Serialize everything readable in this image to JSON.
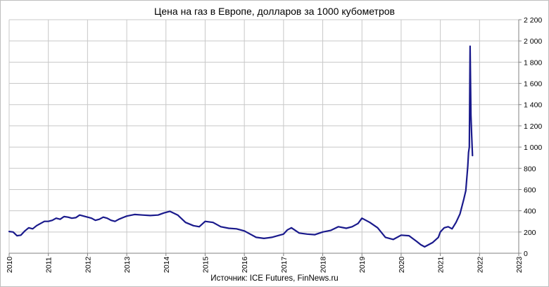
{
  "chart_data": {
    "type": "line",
    "title": "Цена на газ в Европе, долларов за 1000 кубометров",
    "source": "Источник: ICE Futures, FinNews.ru",
    "xlabel": "",
    "ylabel": "",
    "x_ticks": [
      "2010",
      "2011",
      "2012",
      "2013",
      "2014",
      "2015",
      "2016",
      "2017",
      "2018",
      "2019",
      "2020",
      "2021",
      "2022",
      "2023"
    ],
    "xlim": [
      2010,
      2023
    ],
    "y_ticks": [
      "0",
      "200",
      "400",
      "600",
      "800",
      "1 000",
      "1 200",
      "1 400",
      "1 600",
      "1 800",
      "2 000",
      "2 200"
    ],
    "ylim": [
      0,
      2200
    ],
    "y_axis_side": "right",
    "grid": true,
    "line_color": "#1a1a8c",
    "series": [
      {
        "x": [
          2010.0,
          2010.1,
          2010.2,
          2010.3,
          2010.4,
          2010.5,
          2010.6,
          2010.7,
          2010.8,
          2010.9,
          2011.0,
          2011.1,
          2011.2,
          2011.3,
          2011.4,
          2011.5,
          2011.6,
          2011.7,
          2011.8,
          2011.9,
          2012.0,
          2012.1,
          2012.2,
          2012.3,
          2012.4,
          2012.5,
          2012.6,
          2012.7,
          2012.8,
          2012.9,
          2013.0,
          2013.2,
          2013.4,
          2013.6,
          2013.8,
          2013.95,
          2014.1,
          2014.3,
          2014.5,
          2014.7,
          2014.85,
          2015.0,
          2015.2,
          2015.4,
          2015.6,
          2015.8,
          2016.0,
          2016.15,
          2016.3,
          2016.5,
          2016.7,
          2016.9,
          2017.0,
          2017.1,
          2017.2,
          2017.4,
          2017.6,
          2017.8,
          2018.0,
          2018.2,
          2018.4,
          2018.6,
          2018.75,
          2018.9,
          2019.0,
          2019.2,
          2019.4,
          2019.6,
          2019.8,
          2020.0,
          2020.2,
          2020.4,
          2020.5,
          2020.6,
          2020.8,
          2020.95,
          2021.0,
          2021.1,
          2021.2,
          2021.3,
          2021.4,
          2021.5,
          2021.6,
          2021.65,
          2021.7,
          2021.72,
          2021.74,
          2021.76,
          2021.78,
          2021.8,
          2021.82
        ],
        "y": [
          205,
          200,
          165,
          170,
          210,
          240,
          230,
          260,
          280,
          300,
          300,
          310,
          330,
          320,
          345,
          340,
          330,
          335,
          360,
          350,
          340,
          330,
          310,
          320,
          340,
          330,
          310,
          300,
          320,
          335,
          350,
          365,
          360,
          355,
          360,
          380,
          395,
          360,
          290,
          260,
          250,
          300,
          290,
          250,
          235,
          230,
          210,
          180,
          150,
          140,
          150,
          170,
          180,
          220,
          240,
          190,
          180,
          175,
          200,
          215,
          250,
          235,
          250,
          280,
          330,
          290,
          240,
          150,
          130,
          170,
          165,
          110,
          80,
          60,
          100,
          150,
          200,
          240,
          250,
          230,
          290,
          370,
          510,
          590,
          820,
          950,
          1000,
          1950,
          1300,
          1100,
          920
        ]
      }
    ]
  }
}
